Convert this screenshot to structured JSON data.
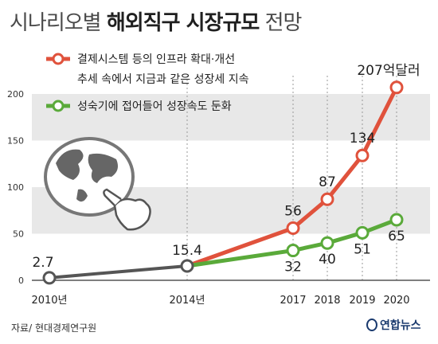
{
  "title": {
    "part1": "시나리오별",
    "part2": "해외직구 시장규모",
    "part3": "전망"
  },
  "source": "자료/ 현대경제연구원",
  "logo": "연합뉴스",
  "colors": {
    "red": "#e0523c",
    "green": "#5aaa3a",
    "band": "#e8e8e8",
    "axis": "#555555"
  },
  "icon": "globe-with-pointing-hand-icon",
  "chart_data": {
    "type": "line",
    "title": "시나리오별 해외직구 시장규모 전망",
    "ylim": [
      0,
      220
    ],
    "yticks": [
      0,
      50,
      100,
      150,
      200
    ],
    "xticks": [
      {
        "x": 2010,
        "label": "2010년"
      },
      {
        "x": 2014,
        "label": "2014년"
      },
      {
        "x": 2017,
        "label": "2017"
      },
      {
        "x": 2018,
        "label": "2018"
      },
      {
        "x": 2019,
        "label": "2019"
      },
      {
        "x": 2020,
        "label": "2020"
      }
    ],
    "shared": {
      "x": [
        2010,
        2014
      ],
      "values": [
        2.7,
        15.4
      ],
      "labels": [
        "2.7",
        "15.4"
      ]
    },
    "series": [
      {
        "name": "결제시스템 등의 인프라 확대·개선 추세 속에서 지금과 같은 성장세 지속",
        "legend_lines": [
          "결제시스템 등의 인프라 확대·개선",
          "추세 속에서 지금과 같은 성장세 지속"
        ],
        "color": "#e0523c",
        "x": [
          2014,
          2017,
          2018,
          2019,
          2020
        ],
        "values": [
          15.4,
          56,
          87,
          134,
          207
        ],
        "labels": [
          "",
          "56",
          "87",
          "134",
          "207억달러"
        ]
      },
      {
        "name": "성숙기에 접어들어 성장속도 둔화",
        "legend_lines": [
          "성숙기에 접어들어 성장속도 둔화"
        ],
        "color": "#5aaa3a",
        "x": [
          2014,
          2017,
          2018,
          2019,
          2020
        ],
        "values": [
          15.4,
          32,
          40,
          51,
          65
        ],
        "labels": [
          "",
          "32",
          "40",
          "51",
          "65"
        ]
      }
    ]
  }
}
